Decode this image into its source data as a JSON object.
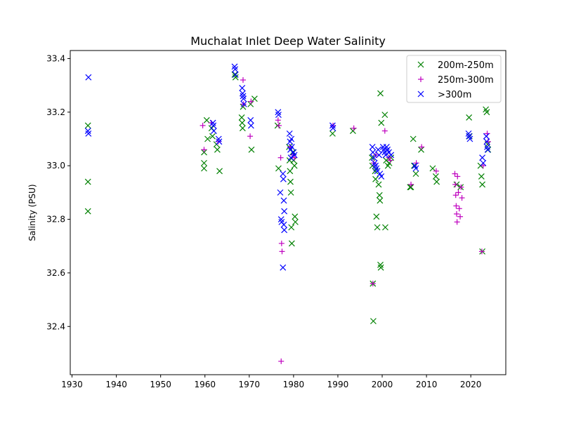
{
  "chart_data": {
    "type": "scatter",
    "title": "Muchalat Inlet Deep Water Salinity",
    "xlabel": "",
    "ylabel": "Salinity (PSU)",
    "xlim": [
      1929.6,
      2027.9
    ],
    "ylim": [
      32.22,
      33.43
    ],
    "xticks": [
      1930,
      1940,
      1950,
      1960,
      1970,
      1980,
      1990,
      2000,
      2010,
      2020
    ],
    "yticks": [
      32.4,
      32.6,
      32.8,
      33.0,
      33.2,
      33.4
    ],
    "ytick_labels": [
      "32.4",
      "32.6",
      "32.8",
      "33.0",
      "33.2",
      "33.4"
    ],
    "grid": false,
    "legend_position": "top-right",
    "series": [
      {
        "name": "200m-250m",
        "marker": "x",
        "color": "#008000",
        "points": [
          [
            1933.6,
            33.15
          ],
          [
            1933.6,
            32.94
          ],
          [
            1933.6,
            32.83
          ],
          [
            1959.8,
            33.05
          ],
          [
            1959.8,
            33.01
          ],
          [
            1959.8,
            32.99
          ],
          [
            1960.4,
            33.17
          ],
          [
            1960.6,
            33.1
          ],
          [
            1961.5,
            33.14
          ],
          [
            1961.7,
            33.11
          ],
          [
            1962.6,
            33.08
          ],
          [
            1962.8,
            33.06
          ],
          [
            1963.3,
            32.98
          ],
          [
            1966.7,
            33.34
          ],
          [
            1966.9,
            33.33
          ],
          [
            1968.3,
            33.18
          ],
          [
            1968.4,
            33.16
          ],
          [
            1968.5,
            33.14
          ],
          [
            1968.6,
            33.22
          ],
          [
            1970.3,
            33.23
          ],
          [
            1970.5,
            33.06
          ],
          [
            1971.2,
            33.25
          ],
          [
            1976.4,
            33.15
          ],
          [
            1976.6,
            32.99
          ],
          [
            1979.0,
            33.07
          ],
          [
            1979.1,
            33.02
          ],
          [
            1979.2,
            32.98
          ],
          [
            1979.3,
            32.94
          ],
          [
            1979.4,
            32.9
          ],
          [
            1979.5,
            32.77
          ],
          [
            1979.6,
            32.71
          ],
          [
            1979.8,
            33.05
          ],
          [
            1980.0,
            33.02
          ],
          [
            1980.2,
            33.0
          ],
          [
            1980.3,
            32.81
          ],
          [
            1980.4,
            32.79
          ],
          [
            1988.8,
            33.12
          ],
          [
            1993.4,
            33.13
          ],
          [
            1997.7,
            33.03
          ],
          [
            1997.8,
            33.0
          ],
          [
            1997.9,
            32.56
          ],
          [
            1998.0,
            32.42
          ],
          [
            1998.4,
            32.98
          ],
          [
            1998.5,
            32.95
          ],
          [
            1998.7,
            32.81
          ],
          [
            1998.9,
            32.77
          ],
          [
            1999.2,
            32.93
          ],
          [
            1999.4,
            32.89
          ],
          [
            1999.5,
            32.87
          ],
          [
            1999.6,
            32.63
          ],
          [
            1999.7,
            32.62
          ],
          [
            1999.6,
            33.27
          ],
          [
            1999.8,
            33.16
          ],
          [
            2000.6,
            33.19
          ],
          [
            2000.7,
            32.77
          ],
          [
            2000.9,
            33.02
          ],
          [
            2001.3,
            33.0
          ],
          [
            2001.6,
            33.01
          ],
          [
            2002.0,
            33.03
          ],
          [
            2006.3,
            32.92
          ],
          [
            2006.5,
            32.92
          ],
          [
            2007.0,
            33.1
          ],
          [
            2007.2,
            33.0
          ],
          [
            2007.6,
            32.97
          ],
          [
            2008.8,
            33.06
          ],
          [
            2011.4,
            32.99
          ],
          [
            2012.1,
            32.96
          ],
          [
            2012.3,
            32.94
          ],
          [
            2016.8,
            32.93
          ],
          [
            2017.7,
            32.92
          ],
          [
            2019.6,
            33.18
          ],
          [
            2019.7,
            33.11
          ],
          [
            2022.2,
            33.0
          ],
          [
            2022.4,
            32.96
          ],
          [
            2022.6,
            32.93
          ],
          [
            2022.6,
            32.68
          ],
          [
            2023.4,
            33.21
          ],
          [
            2023.6,
            33.2
          ],
          [
            2023.8,
            33.08
          ],
          [
            2023.9,
            33.06
          ]
        ]
      },
      {
        "name": "250m-300m",
        "marker": "+",
        "color": "#bf00bf",
        "points": [
          [
            1959.5,
            33.15
          ],
          [
            1959.8,
            33.06
          ],
          [
            1961.4,
            33.16
          ],
          [
            1963.0,
            33.09
          ],
          [
            1968.6,
            33.32
          ],
          [
            1968.7,
            33.23
          ],
          [
            1970.2,
            33.11
          ],
          [
            1970.4,
            33.24
          ],
          [
            1976.5,
            33.17
          ],
          [
            1976.7,
            33.15
          ],
          [
            1977.1,
            33.03
          ],
          [
            1977.3,
            32.71
          ],
          [
            1977.4,
            32.68
          ],
          [
            1977.2,
            32.27
          ],
          [
            1979.2,
            33.07
          ],
          [
            1979.9,
            33.04
          ],
          [
            1980.2,
            33.03
          ],
          [
            1988.9,
            33.15
          ],
          [
            1993.6,
            33.14
          ],
          [
            1997.9,
            32.56
          ],
          [
            1998.1,
            33.01
          ],
          [
            1998.6,
            33.04
          ],
          [
            2000.6,
            33.13
          ],
          [
            2001.5,
            33.03
          ],
          [
            2001.8,
            33.02
          ],
          [
            2006.5,
            32.93
          ],
          [
            2007.7,
            33.01
          ],
          [
            2008.9,
            33.07
          ],
          [
            2012.2,
            32.98
          ],
          [
            2016.4,
            32.97
          ],
          [
            2016.5,
            32.93
          ],
          [
            2016.6,
            32.89
          ],
          [
            2016.7,
            32.85
          ],
          [
            2016.8,
            32.82
          ],
          [
            2016.9,
            32.79
          ],
          [
            2017.0,
            32.96
          ],
          [
            2017.2,
            32.9
          ],
          [
            2017.4,
            32.84
          ],
          [
            2017.6,
            32.81
          ],
          [
            2017.8,
            32.92
          ],
          [
            2018.0,
            32.88
          ],
          [
            2022.5,
            32.68
          ],
          [
            2022.8,
            33.0
          ],
          [
            2023.7,
            33.12
          ],
          [
            2023.9,
            33.09
          ]
        ]
      },
      {
        "name": ">300m",
        "marker": "x",
        "color": "#0000ff",
        "points": [
          [
            1933.7,
            33.33
          ],
          [
            1933.6,
            33.13
          ],
          [
            1933.7,
            33.12
          ],
          [
            1961.8,
            33.16
          ],
          [
            1961.9,
            33.15
          ],
          [
            1962.0,
            33.13
          ],
          [
            1963.1,
            33.1
          ],
          [
            1963.2,
            33.09
          ],
          [
            1966.7,
            33.37
          ],
          [
            1966.8,
            33.36
          ],
          [
            1966.9,
            33.34
          ],
          [
            1968.4,
            33.29
          ],
          [
            1968.5,
            33.27
          ],
          [
            1968.6,
            33.26
          ],
          [
            1968.7,
            33.25
          ],
          [
            1968.8,
            33.23
          ],
          [
            1970.3,
            33.17
          ],
          [
            1970.4,
            33.15
          ],
          [
            1976.5,
            33.2
          ],
          [
            1976.6,
            33.19
          ],
          [
            1977.0,
            32.9
          ],
          [
            1977.2,
            32.8
          ],
          [
            1977.3,
            32.79
          ],
          [
            1977.6,
            32.97
          ],
          [
            1977.7,
            32.95
          ],
          [
            1977.8,
            32.87
          ],
          [
            1977.9,
            32.83
          ],
          [
            1977.8,
            32.78
          ],
          [
            1977.9,
            32.76
          ],
          [
            1977.6,
            32.62
          ],
          [
            1979.1,
            33.12
          ],
          [
            1979.2,
            33.09
          ],
          [
            1979.3,
            33.06
          ],
          [
            1979.4,
            33.03
          ],
          [
            1979.5,
            33.1
          ],
          [
            1979.6,
            33.07
          ],
          [
            1980.0,
            33.05
          ],
          [
            1980.2,
            33.04
          ],
          [
            1988.8,
            33.15
          ],
          [
            1988.9,
            33.14
          ],
          [
            1997.8,
            33.07
          ],
          [
            1997.9,
            33.05
          ],
          [
            1998.1,
            33.03
          ],
          [
            1998.3,
            33.01
          ],
          [
            1998.5,
            33.0
          ],
          [
            1998.7,
            32.99
          ],
          [
            1998.9,
            32.98
          ],
          [
            1999.1,
            33.06
          ],
          [
            1999.3,
            33.04
          ],
          [
            1999.5,
            32.97
          ],
          [
            1999.8,
            32.96
          ],
          [
            2000.2,
            33.07
          ],
          [
            2000.4,
            33.06
          ],
          [
            2000.6,
            33.05
          ],
          [
            2000.8,
            33.04
          ],
          [
            2001.0,
            33.07
          ],
          [
            2001.2,
            33.06
          ],
          [
            2001.5,
            33.05
          ],
          [
            2002.0,
            33.04
          ],
          [
            2007.4,
            33.0
          ],
          [
            2007.6,
            32.99
          ],
          [
            2019.5,
            33.12
          ],
          [
            2019.6,
            33.11
          ],
          [
            2019.8,
            33.1
          ],
          [
            2022.6,
            33.03
          ],
          [
            2022.8,
            33.01
          ],
          [
            2023.5,
            33.11
          ],
          [
            2023.6,
            33.09
          ],
          [
            2023.7,
            33.07
          ],
          [
            2023.8,
            33.06
          ]
        ]
      }
    ]
  }
}
